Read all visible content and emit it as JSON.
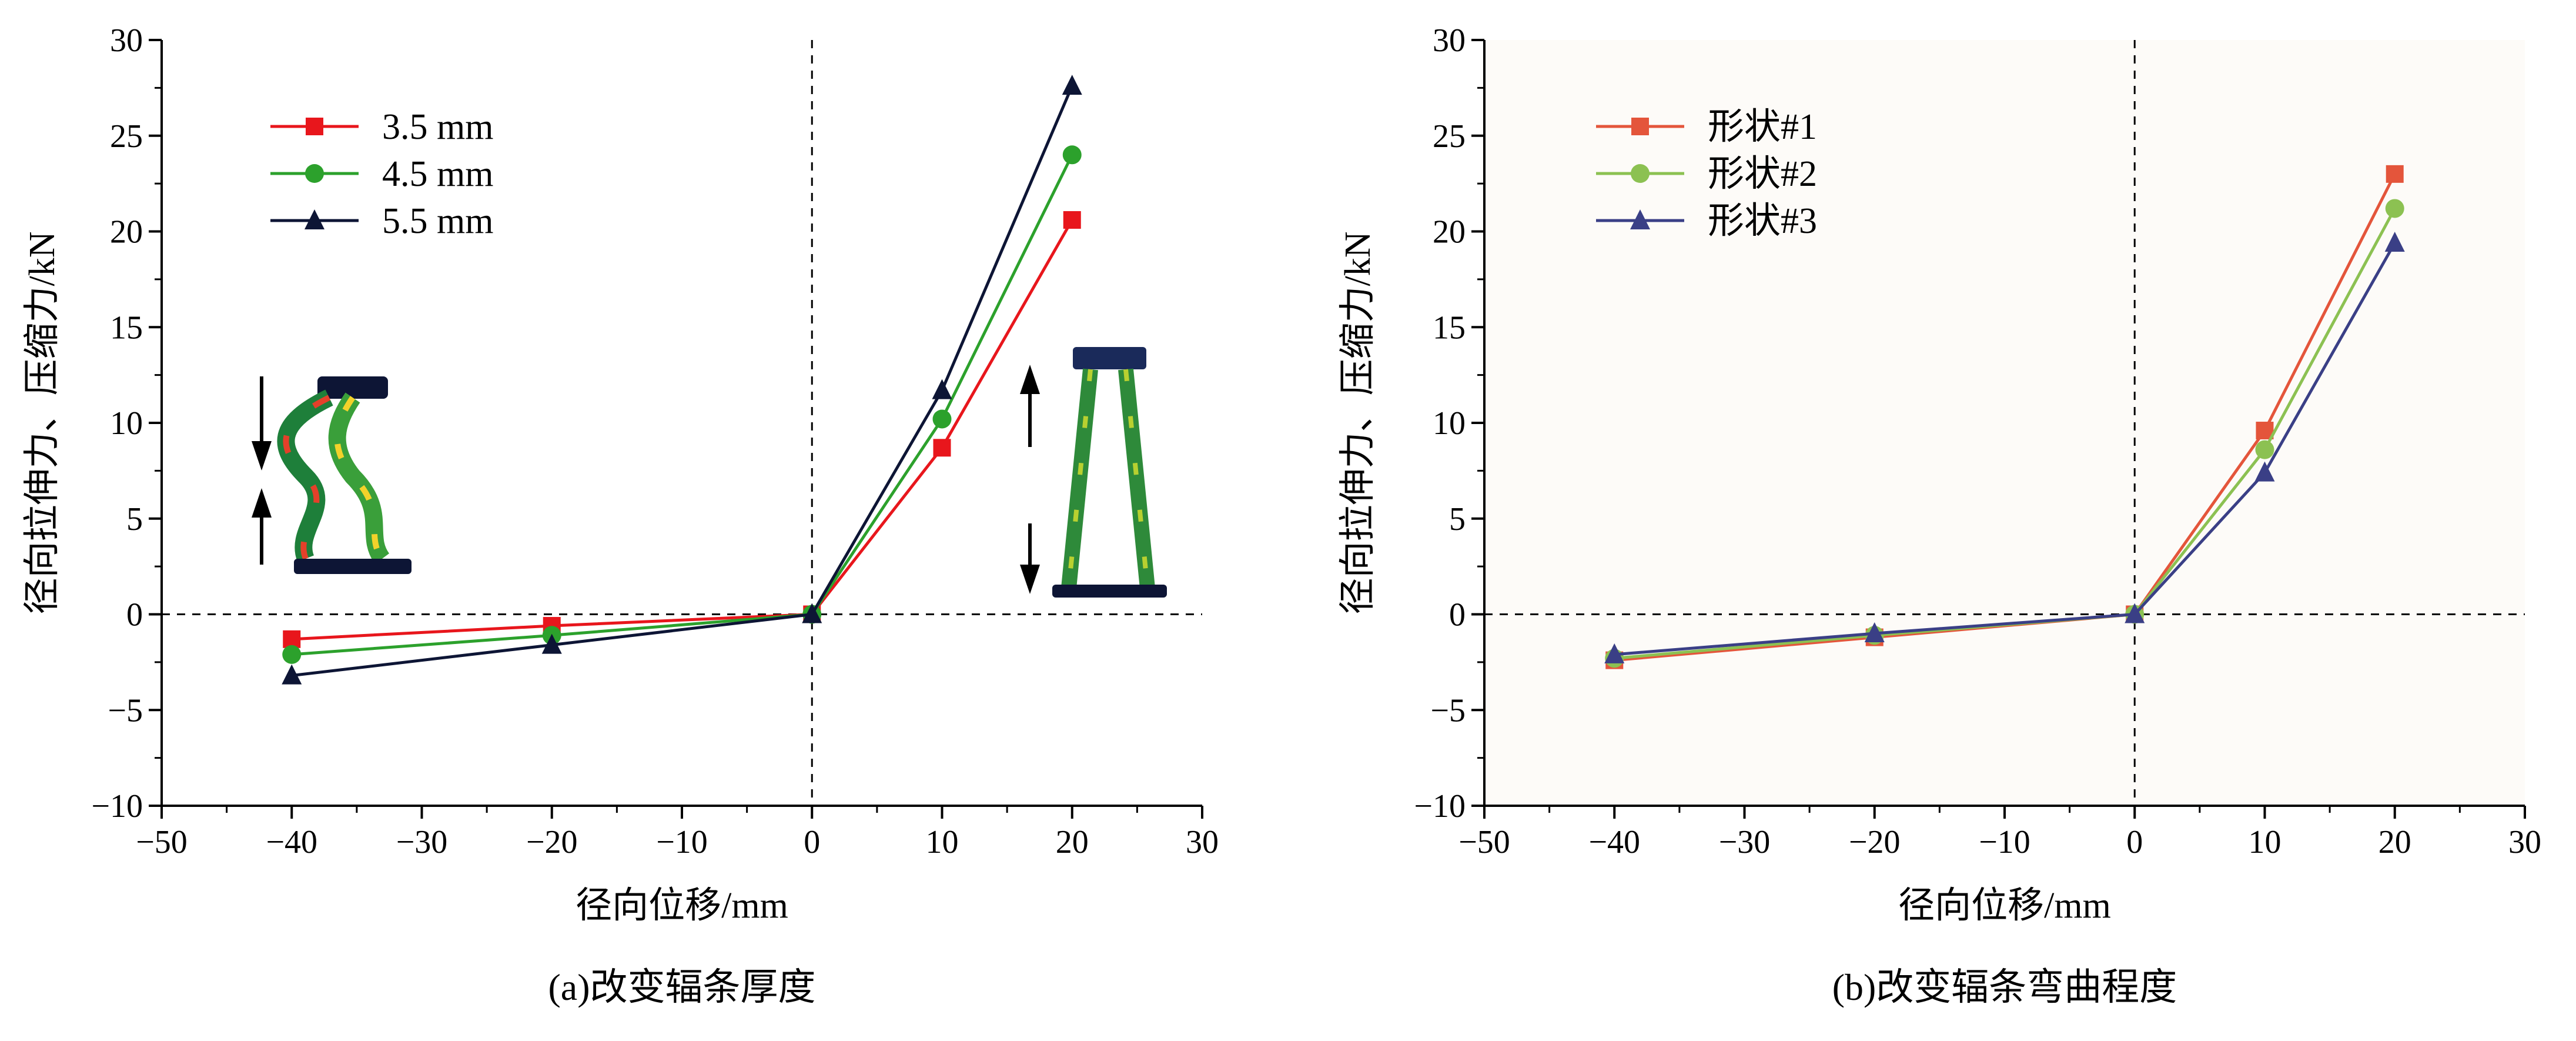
{
  "chart_data": [
    {
      "type": "line",
      "caption": "(a)改变辐条厚度",
      "xlabel": "径向位移/mm",
      "ylabel": "径向拉伸力、压缩力/kN",
      "xlim": [
        -50,
        30
      ],
      "ylim": [
        -10,
        30
      ],
      "xticks": [
        -50,
        -40,
        -30,
        -20,
        -10,
        0,
        10,
        20,
        30
      ],
      "yticks": [
        -10,
        -5,
        0,
        5,
        10,
        15,
        20,
        25,
        30
      ],
      "xtick_labels": [
        "−50",
        "−40",
        "−30",
        "−20",
        "−10",
        "0",
        "10",
        "20",
        "30"
      ],
      "ytick_labels": [
        "−10",
        "−5",
        "0",
        "5",
        "10",
        "15",
        "20",
        "25",
        "30"
      ],
      "zero_lines": true,
      "legend": "top-left",
      "x": [
        -40,
        -20,
        0,
        10,
        20
      ],
      "series": [
        {
          "name": "3.5 mm",
          "color": "#e8161c",
          "marker": "square",
          "values": [
            -1.3,
            -0.6,
            0,
            8.7,
            20.6
          ]
        },
        {
          "name": "4.5 mm",
          "color": "#2ca12c",
          "marker": "circle",
          "values": [
            -2.1,
            -1.1,
            0,
            10.2,
            24.0
          ]
        },
        {
          "name": "5.5 mm",
          "color": "#0d1535",
          "marker": "triangle",
          "values": [
            -3.2,
            -1.6,
            0,
            11.7,
            27.6
          ]
        }
      ],
      "insets": [
        "compressed-spoke-model",
        "stretched-spoke-model"
      ]
    },
    {
      "type": "line",
      "caption": "(b)改变辐条弯曲程度",
      "xlabel": "径向位移/mm",
      "ylabel": "径向拉伸力、压缩力/kN",
      "xlim": [
        -50,
        30
      ],
      "ylim": [
        -10,
        30
      ],
      "xticks": [
        -50,
        -40,
        -30,
        -20,
        -10,
        0,
        10,
        20,
        30
      ],
      "yticks": [
        -10,
        -5,
        0,
        5,
        10,
        15,
        20,
        25,
        30
      ],
      "xtick_labels": [
        "−50",
        "−40",
        "−30",
        "−20",
        "−10",
        "0",
        "10",
        "20",
        "30"
      ],
      "ytick_labels": [
        "−10",
        "−5",
        "0",
        "5",
        "10",
        "15",
        "20",
        "25",
        "30"
      ],
      "zero_lines": true,
      "legend": "top-left",
      "x": [
        -40,
        -20,
        0,
        10,
        20
      ],
      "series": [
        {
          "name": "形状#1",
          "color": "#e4553b",
          "marker": "square",
          "values": [
            -2.4,
            -1.2,
            0,
            9.6,
            23.0
          ]
        },
        {
          "name": "形状#2",
          "color": "#8cc152",
          "marker": "circle",
          "values": [
            -2.3,
            -1.1,
            0,
            8.6,
            21.2
          ]
        },
        {
          "name": "形状#3",
          "color": "#3a3f86",
          "marker": "triangle",
          "values": [
            -2.1,
            -1.0,
            0,
            7.4,
            19.4
          ]
        }
      ]
    }
  ]
}
